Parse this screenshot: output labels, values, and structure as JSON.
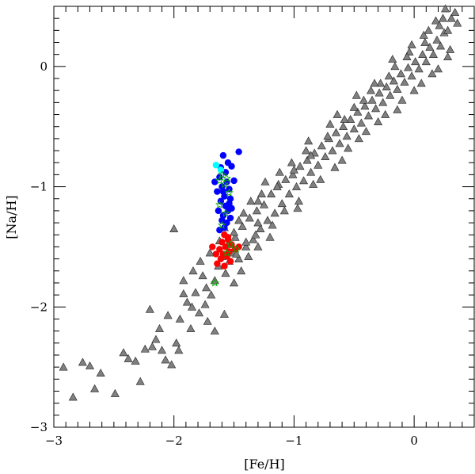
{
  "chart_data": {
    "type": "scatter",
    "title": "",
    "xlabel": "[Fe/H]",
    "ylabel": "[Na/H]",
    "xlim": [
      -3,
      0.5
    ],
    "ylim": [
      -3,
      0.5
    ],
    "xticks": [
      -3,
      -2,
      -1,
      0
    ],
    "yticks": [
      -3,
      -2,
      -1,
      0
    ],
    "xtick_labels": [
      "−3",
      "−2",
      "−1",
      "0"
    ],
    "ytick_labels": [
      "−3",
      "−2",
      "−1",
      "0"
    ],
    "grid": false,
    "legend": "none",
    "series": [
      {
        "marker": "triangle",
        "color": "#808080",
        "points": [
          [
            -2.92,
            -2.5
          ],
          [
            -2.84,
            -2.75
          ],
          [
            -2.7,
            -2.49
          ],
          [
            -2.66,
            -2.68
          ],
          [
            -2.61,
            -2.55
          ],
          [
            -2.49,
            -2.72
          ],
          [
            -2.42,
            -2.38
          ],
          [
            -2.38,
            -2.43
          ],
          [
            -2.32,
            -2.45
          ],
          [
            -2.24,
            -2.35
          ],
          [
            -2.18,
            -2.33
          ],
          [
            -2.15,
            -2.27
          ],
          [
            -2.12,
            -2.18
          ],
          [
            -2.1,
            -2.36
          ],
          [
            -2.07,
            -2.44
          ],
          [
            -2.05,
            -2.07
          ],
          [
            -2.02,
            -2.48
          ],
          [
            -1.98,
            -2.3
          ],
          [
            -1.95,
            -2.1
          ],
          [
            -1.92,
            -1.89
          ],
          [
            -1.89,
            -1.96
          ],
          [
            -1.85,
            -2.0
          ],
          [
            -1.82,
            -1.88
          ],
          [
            -1.79,
            -2.05
          ],
          [
            -1.76,
            -1.74
          ],
          [
            -1.73,
            -1.84
          ],
          [
            -1.72,
            -2.12
          ],
          [
            -1.69,
            -1.9
          ],
          [
            -1.66,
            -1.78
          ],
          [
            -1.63,
            -1.66
          ],
          [
            -1.6,
            -1.58
          ],
          [
            -1.57,
            -1.72
          ],
          [
            -1.55,
            -1.48
          ],
          [
            -1.52,
            -1.55
          ],
          [
            -1.49,
            -1.42
          ],
          [
            -1.46,
            -1.6
          ],
          [
            -1.43,
            -1.33
          ],
          [
            -1.4,
            -1.5
          ],
          [
            -1.37,
            -1.26
          ],
          [
            -1.34,
            -1.44
          ],
          [
            -1.31,
            -1.2
          ],
          [
            -1.28,
            -1.35
          ],
          [
            -1.25,
            -1.15
          ],
          [
            -1.22,
            -1.28
          ],
          [
            -1.19,
            -1.06
          ],
          [
            -1.16,
            -1.22
          ],
          [
            -1.13,
            -0.98
          ],
          [
            -1.1,
            -1.14
          ],
          [
            -1.07,
            -0.94
          ],
          [
            -1.04,
            -1.06
          ],
          [
            -1.01,
            -0.9
          ],
          [
            -0.98,
            -1.0
          ],
          [
            -0.95,
            -0.83
          ],
          [
            -0.92,
            -0.95
          ],
          [
            -0.89,
            -0.78
          ],
          [
            -0.86,
            -0.88
          ],
          [
            -0.83,
            -0.72
          ],
          [
            -0.8,
            -0.82
          ],
          [
            -0.77,
            -0.66
          ],
          [
            -0.74,
            -0.75
          ],
          [
            -0.71,
            -0.6
          ],
          [
            -0.68,
            -0.7
          ],
          [
            -0.65,
            -0.55
          ],
          [
            -0.62,
            -0.64
          ],
          [
            -0.59,
            -0.5
          ],
          [
            -0.56,
            -0.58
          ],
          [
            -0.53,
            -0.44
          ],
          [
            -0.5,
            -0.52
          ],
          [
            -0.47,
            -0.38
          ],
          [
            -0.44,
            -0.47
          ],
          [
            -0.41,
            -0.33
          ],
          [
            -0.38,
            -0.41
          ],
          [
            -0.35,
            -0.28
          ],
          [
            -0.32,
            -0.35
          ],
          [
            -0.29,
            -0.22
          ],
          [
            -0.26,
            -0.3
          ],
          [
            -0.23,
            -0.17
          ],
          [
            -0.2,
            -0.24
          ],
          [
            -0.17,
            -0.12
          ],
          [
            -0.14,
            -0.19
          ],
          [
            -0.11,
            -0.06
          ],
          [
            -0.08,
            -0.13
          ],
          [
            -0.05,
            -0.01
          ],
          [
            -0.02,
            -0.08
          ],
          [
            0.01,
            0.04
          ],
          [
            0.04,
            -0.02
          ],
          [
            0.07,
            0.1
          ],
          [
            0.1,
            0.04
          ],
          [
            0.13,
            0.16
          ],
          [
            0.16,
            0.1
          ],
          [
            0.19,
            0.22
          ],
          [
            0.22,
            0.17
          ],
          [
            0.25,
            0.28
          ],
          [
            0.28,
            0.3
          ],
          [
            0.31,
            0.4
          ],
          [
            0.34,
            0.45
          ],
          [
            0.26,
            0.48
          ],
          [
            0.18,
            0.38
          ],
          [
            0.08,
            0.26
          ],
          [
            -0.04,
            0.12
          ],
          [
            -0.16,
            0.0
          ],
          [
            -0.28,
            -0.14
          ],
          [
            -0.42,
            -0.28
          ],
          [
            -0.58,
            -0.44
          ],
          [
            -0.72,
            -0.58
          ],
          [
            -0.86,
            -0.74
          ],
          [
            -1.0,
            -0.86
          ],
          [
            -1.14,
            -1.0
          ],
          [
            -1.3,
            -1.12
          ],
          [
            -1.46,
            -1.28
          ],
          [
            -1.62,
            -1.45
          ],
          [
            -1.78,
            -1.62
          ],
          [
            -1.92,
            -1.78
          ],
          [
            -2.0,
            -1.35
          ],
          [
            -1.84,
            -1.7
          ],
          [
            -1.7,
            -1.55
          ],
          [
            -1.58,
            -1.34
          ],
          [
            -1.5,
            -1.38
          ],
          [
            -1.42,
            -1.22
          ],
          [
            -1.36,
            -1.12
          ],
          [
            -1.3,
            -1.3
          ],
          [
            -1.24,
            -0.96
          ],
          [
            -1.2,
            -1.42
          ],
          [
            -1.12,
            -0.88
          ],
          [
            -1.08,
            -1.2
          ],
          [
            -0.96,
            -1.12
          ],
          [
            -0.9,
            -0.7
          ],
          [
            -0.84,
            -0.98
          ],
          [
            -0.7,
            -0.48
          ],
          [
            -0.66,
            -0.84
          ],
          [
            -0.55,
            -0.68
          ],
          [
            -0.48,
            -0.24
          ],
          [
            -0.4,
            -0.54
          ],
          [
            -0.33,
            -0.14
          ],
          [
            -0.24,
            -0.4
          ],
          [
            -0.18,
            0.06
          ],
          [
            -0.1,
            -0.28
          ],
          [
            -0.02,
            0.18
          ],
          [
            0.06,
            -0.14
          ],
          [
            0.12,
            0.3
          ],
          [
            0.2,
            -0.02
          ],
          [
            0.24,
            0.4
          ],
          [
            0.3,
            0.14
          ],
          [
            0.36,
            0.36
          ],
          [
            -2.76,
            -2.46
          ],
          [
            -2.28,
            -2.62
          ],
          [
            -2.2,
            -2.02
          ],
          [
            -1.96,
            -2.36
          ],
          [
            -1.86,
            -2.18
          ],
          [
            -1.74,
            -1.98
          ],
          [
            -1.66,
            -2.2
          ],
          [
            -1.58,
            -2.06
          ],
          [
            -1.5,
            -1.8
          ],
          [
            -1.44,
            -1.7
          ],
          [
            -1.38,
            -1.58
          ],
          [
            -1.3,
            -1.5
          ],
          [
            -1.54,
            -1.62
          ],
          [
            -1.48,
            -1.56
          ],
          [
            -1.4,
            -1.46
          ],
          [
            -1.32,
            -1.4
          ],
          [
            -1.27,
            -1.06
          ],
          [
            -1.18,
            -1.32
          ],
          [
            -1.02,
            -0.8
          ],
          [
            -0.97,
            -1.18
          ],
          [
            -0.88,
            -0.62
          ],
          [
            -0.78,
            -0.94
          ],
          [
            -0.64,
            -0.4
          ],
          [
            -0.6,
            -0.78
          ],
          [
            -0.5,
            -0.34
          ],
          [
            -0.46,
            -0.6
          ],
          [
            -0.36,
            -0.2
          ],
          [
            -0.3,
            -0.46
          ],
          [
            -0.21,
            -0.08
          ],
          [
            -0.14,
            -0.36
          ],
          [
            -0.06,
            0.08
          ],
          [
            0.0,
            -0.2
          ],
          [
            0.09,
            0.2
          ],
          [
            0.15,
            -0.06
          ],
          [
            0.21,
            0.34
          ],
          [
            0.28,
            0.08
          ]
        ]
      },
      {
        "marker": "circle",
        "color": "#0000ff",
        "points": [
          [
            -1.59,
            -0.74
          ],
          [
            -1.55,
            -0.8
          ],
          [
            -1.61,
            -0.84
          ],
          [
            -1.57,
            -0.88
          ],
          [
            -1.52,
            -0.83
          ],
          [
            -1.62,
            -0.92
          ],
          [
            -1.56,
            -0.96
          ],
          [
            -1.6,
            -1.0
          ],
          [
            -1.54,
            -1.02
          ],
          [
            -1.64,
            -1.04
          ],
          [
            -1.58,
            -1.08
          ],
          [
            -1.53,
            -1.1
          ],
          [
            -1.61,
            -1.12
          ],
          [
            -1.57,
            -1.16
          ],
          [
            -1.55,
            -1.2
          ],
          [
            -1.63,
            -1.2
          ],
          [
            -1.59,
            -1.24
          ],
          [
            -1.53,
            -1.26
          ],
          [
            -1.6,
            -1.28
          ],
          [
            -1.56,
            -1.3
          ],
          [
            -1.58,
            -1.34
          ],
          [
            -1.62,
            -1.36
          ],
          [
            -1.54,
            -1.14
          ],
          [
            -1.66,
            -0.96
          ],
          [
            -1.5,
            -0.95
          ],
          [
            -1.46,
            -0.71
          ],
          [
            -1.52,
            -1.18
          ],
          [
            -1.59,
            -1.04
          ]
        ]
      },
      {
        "marker": "circle",
        "color": "#00ffff",
        "points": [
          [
            -1.65,
            -0.82
          ],
          [
            -1.61,
            -0.86
          ]
        ]
      },
      {
        "marker": "circle",
        "color": "#ff0000",
        "points": [
          [
            -1.58,
            -1.4
          ],
          [
            -1.55,
            -1.44
          ],
          [
            -1.6,
            -1.46
          ],
          [
            -1.57,
            -1.5
          ],
          [
            -1.62,
            -1.52
          ],
          [
            -1.54,
            -1.54
          ],
          [
            -1.59,
            -1.56
          ],
          [
            -1.56,
            -1.58
          ],
          [
            -1.61,
            -1.6
          ],
          [
            -1.68,
            -1.5
          ],
          [
            -1.65,
            -1.56
          ],
          [
            -1.52,
            -1.48
          ],
          [
            -1.53,
            -1.62
          ],
          [
            -1.64,
            -1.64
          ],
          [
            -1.49,
            -1.52
          ],
          [
            -1.46,
            -1.5
          ],
          [
            -1.58,
            -1.66
          ],
          [
            -1.55,
            -1.42
          ]
        ]
      },
      {
        "marker": "star",
        "color": "#00aa00",
        "points": [
          [
            -1.6,
            -0.9
          ],
          [
            -1.56,
            -0.93
          ],
          [
            -1.58,
            -0.98
          ],
          [
            -1.54,
            -1.05
          ],
          [
            -1.62,
            -1.15
          ],
          [
            -1.57,
            -1.22
          ],
          [
            -1.6,
            -1.32
          ],
          [
            -1.53,
            -1.48
          ],
          [
            -1.48,
            -1.52
          ],
          [
            -1.56,
            -1.55
          ],
          [
            -1.66,
            -1.8
          ],
          [
            -1.62,
            -0.95
          ]
        ]
      }
    ]
  }
}
